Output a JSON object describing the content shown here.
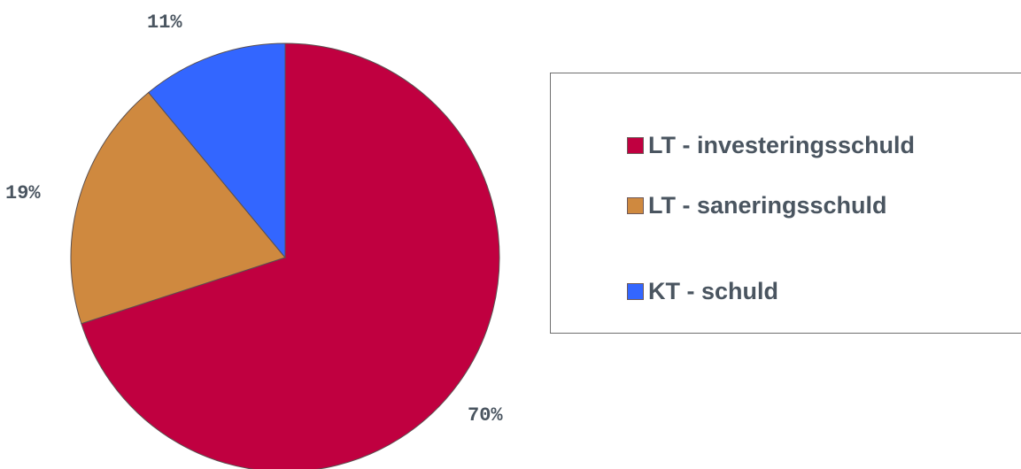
{
  "chart_data": {
    "type": "pie",
    "slices": [
      {
        "name": "LT - investeringsschuld",
        "value": 70,
        "label": "70%",
        "color": "#c00040"
      },
      {
        "name": "LT - saneringsschuld",
        "value": 19,
        "label": "19%",
        "color": "#cf893f"
      },
      {
        "name": "KT - schuld",
        "value": 11,
        "label": "11%",
        "color": "#3366ff"
      }
    ],
    "legend": {
      "position": "right",
      "items": [
        "LT - investeringsschuld",
        "LT - saneringsschuld",
        "KT - schuld"
      ]
    }
  }
}
